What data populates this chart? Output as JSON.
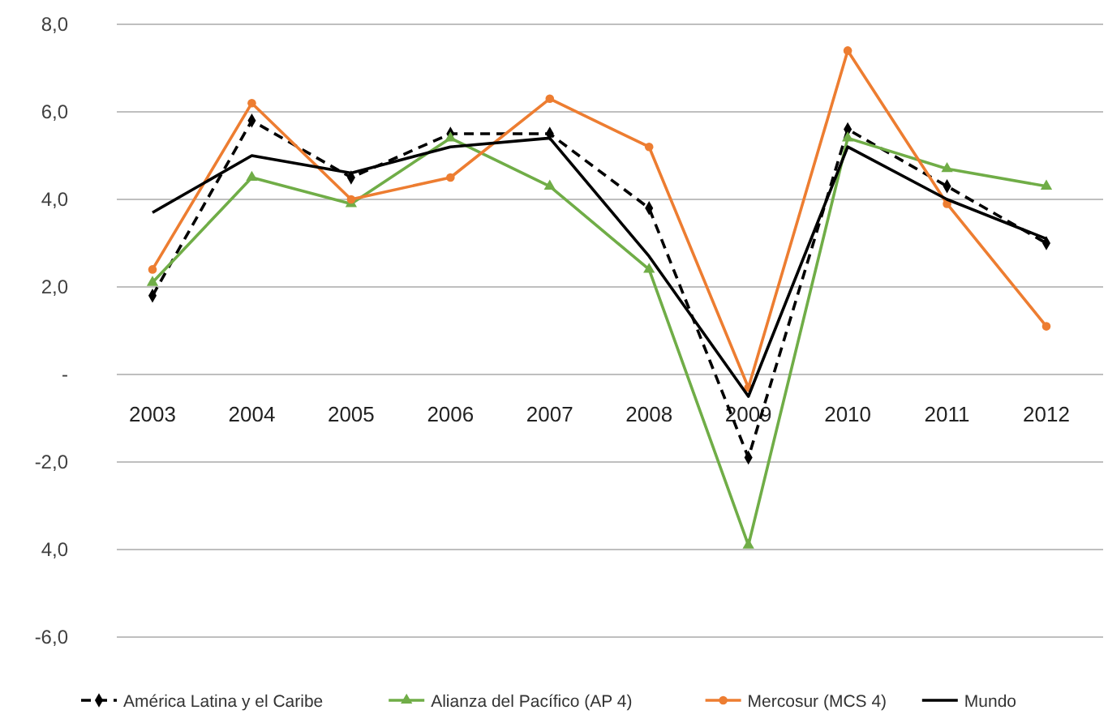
{
  "chart_data": {
    "type": "line",
    "categories": [
      "2003",
      "2004",
      "2005",
      "2006",
      "2007",
      "2008",
      "2009",
      "2010",
      "2011",
      "2012"
    ],
    "series": [
      {
        "name": "América Latina y el Caribe",
        "color": "#000000",
        "marker": "diamond",
        "line_style": "dashed",
        "values": [
          1.8,
          5.8,
          4.5,
          5.5,
          5.5,
          3.8,
          -1.9,
          5.6,
          4.3,
          3.0
        ]
      },
      {
        "name": "Alianza del Pacífico (AP 4)",
        "color": "#70ad47",
        "marker": "triangle",
        "line_style": "solid",
        "values": [
          2.1,
          4.5,
          3.9,
          5.4,
          4.3,
          2.4,
          -3.9,
          5.4,
          4.7,
          4.3
        ]
      },
      {
        "name": "Mercosur (MCS 4)",
        "color": "#ed7d31",
        "marker": "circle",
        "line_style": "solid",
        "values": [
          2.4,
          6.2,
          4.0,
          4.5,
          6.3,
          5.2,
          -0.3,
          7.4,
          3.9,
          1.1
        ]
      },
      {
        "name": "Mundo",
        "color": "#000000",
        "marker": "none",
        "line_style": "solid",
        "values": [
          3.7,
          5.0,
          4.6,
          5.2,
          5.4,
          2.7,
          -0.5,
          5.2,
          4.0,
          3.1
        ]
      }
    ],
    "ylim": [
      -6,
      8
    ],
    "yticks": [
      {
        "value": 8,
        "label": "8,0"
      },
      {
        "value": 6,
        "label": "6,0"
      },
      {
        "value": 4,
        "label": "4,0"
      },
      {
        "value": 2,
        "label": "2,0"
      },
      {
        "value": 0,
        "label": "-"
      },
      {
        "value": -2,
        "label": "-2,0"
      },
      {
        "value": -4,
        "label": "4,0"
      },
      {
        "value": -6,
        "label": "-6,0"
      }
    ],
    "grid": "y",
    "legend": "bottom"
  }
}
